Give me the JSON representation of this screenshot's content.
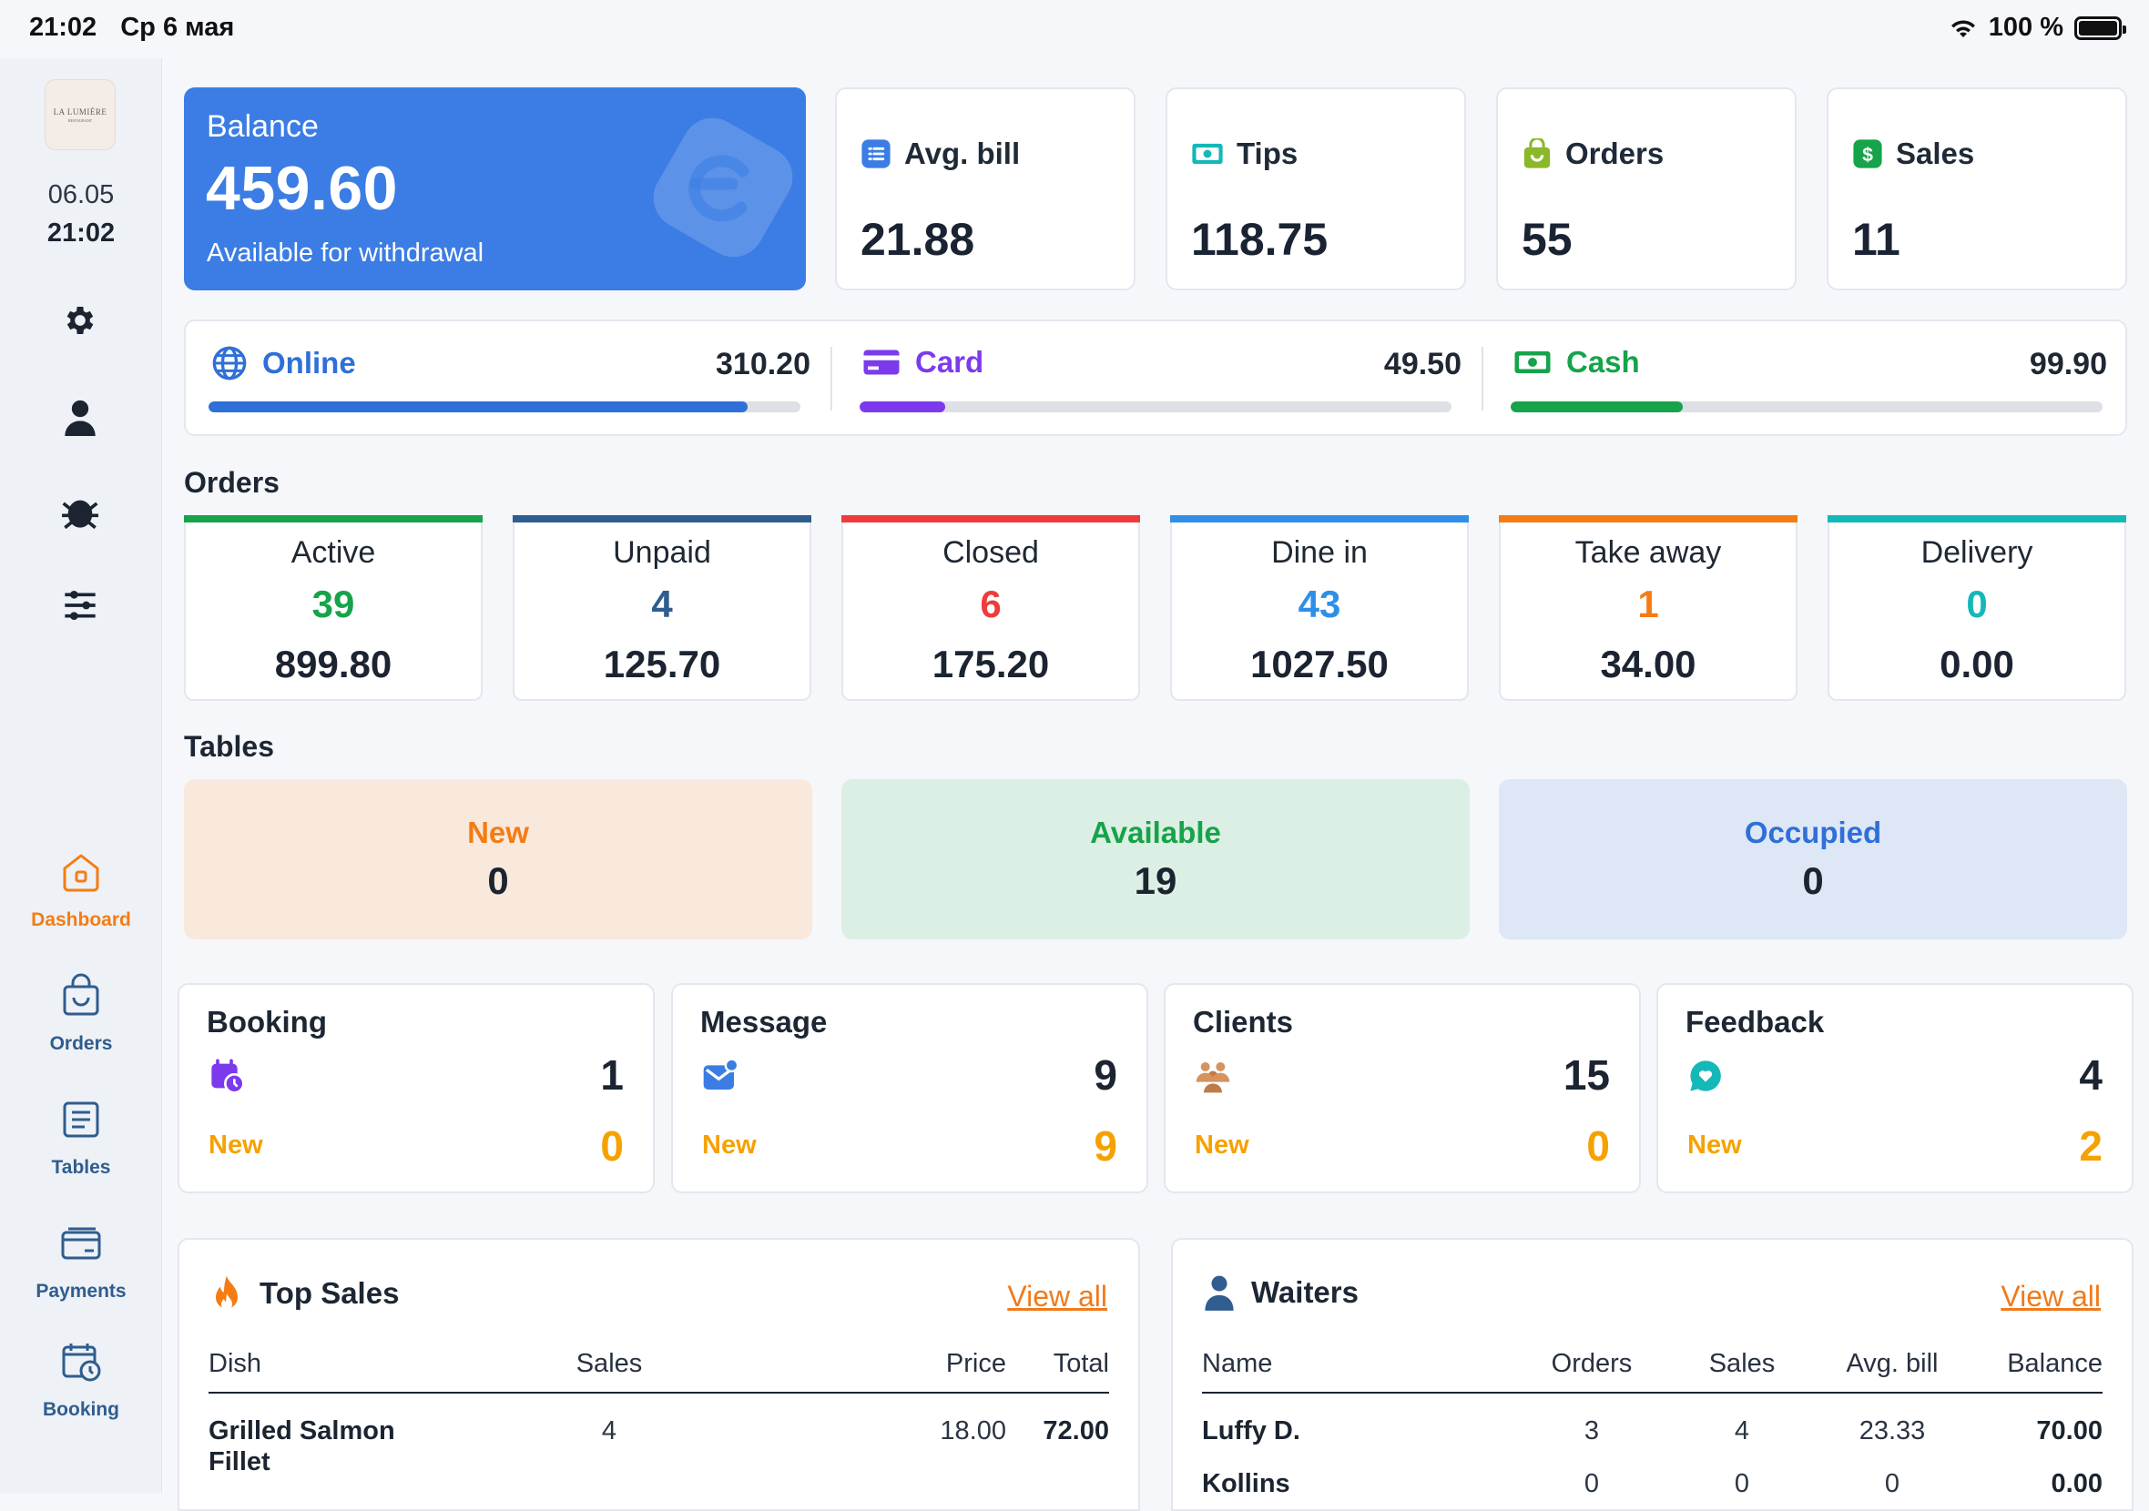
{
  "status_bar": {
    "time": "21:02",
    "date": "Ср 6 мая",
    "battery": "100 %"
  },
  "sidebar": {
    "logo_text": "LA LUMIÈRE",
    "logo_subtext": "RESTAURANT",
    "date": "06.05",
    "time": "21:02",
    "tool_icons": [
      "gear-icon",
      "user-icon",
      "bug-icon",
      "sliders-icon"
    ],
    "nav": [
      {
        "label": "Dashboard",
        "icon": "home-icon",
        "active": true
      },
      {
        "label": "Orders",
        "icon": "bag-icon",
        "active": false
      },
      {
        "label": "Tables",
        "icon": "list-icon",
        "active": false
      },
      {
        "label": "Payments",
        "icon": "card-icon",
        "active": false
      },
      {
        "label": "Booking",
        "icon": "calendar-clock-icon",
        "active": false
      }
    ]
  },
  "balance": {
    "label": "Balance",
    "amount": "459.60",
    "subtitle": "Available for withdrawal"
  },
  "stats": [
    {
      "label": "Avg. bill",
      "value": "21.88",
      "icon": "list-icon",
      "color": "#3b7de4"
    },
    {
      "label": "Tips",
      "value": "118.75",
      "icon": "money-icon",
      "color": "#14b8b8"
    },
    {
      "label": "Orders",
      "value": "55",
      "icon": "bag-icon",
      "color": "#8bb82a"
    },
    {
      "label": "Sales",
      "value": "11",
      "icon": "dollar-icon",
      "color": "#16a34a"
    }
  ],
  "payments": [
    {
      "label": "Online",
      "value": "310.20",
      "share": 0.91,
      "color": "#2f6fd8",
      "icon": "globe-icon"
    },
    {
      "label": "Card",
      "value": "49.50",
      "share": 0.145,
      "color": "#7c3aed",
      "icon": "credit-card-icon"
    },
    {
      "label": "Cash",
      "value": "99.90",
      "share": 0.29,
      "color": "#16a34a",
      "icon": "cash-icon"
    }
  ],
  "orders_section": {
    "title": "Orders",
    "cards": [
      {
        "label": "Active",
        "count": "39",
        "amount": "899.80",
        "color": "#16a34a"
      },
      {
        "label": "Unpaid",
        "count": "4",
        "amount": "125.70",
        "color": "#2f5d8f"
      },
      {
        "label": "Closed",
        "count": "6",
        "amount": "175.20",
        "color": "#ef3b3b"
      },
      {
        "label": "Dine in",
        "count": "43",
        "amount": "1027.50",
        "color": "#2f8fe8"
      },
      {
        "label": "Take away",
        "count": "1",
        "amount": "34.00",
        "color": "#f57c14"
      },
      {
        "label": "Delivery",
        "count": "0",
        "amount": "0.00",
        "color": "#14b8b8"
      }
    ]
  },
  "tables_section": {
    "title": "Tables",
    "cards": [
      {
        "label": "New",
        "count": "0",
        "color": "#f57c14",
        "bg": "#f9e9dc"
      },
      {
        "label": "Available",
        "count": "19",
        "color": "#16a34a",
        "bg": "#dcefe4"
      },
      {
        "label": "Occupied",
        "count": "0",
        "color": "#2f6fd8",
        "bg": "#dde7f5"
      }
    ]
  },
  "info_cards": [
    {
      "title": "Booking",
      "count": "1",
      "new_label": "New",
      "new_count": "0",
      "icon": "calendar-clock-icon"
    },
    {
      "title": "Message",
      "count": "9",
      "new_label": "New",
      "new_count": "9",
      "icon": "mail-icon"
    },
    {
      "title": "Clients",
      "count": "15",
      "new_label": "New",
      "new_count": "0",
      "icon": "people-icon"
    },
    {
      "title": "Feedback",
      "count": "4",
      "new_label": "New",
      "new_count": "2",
      "icon": "heart-chat-icon"
    }
  ],
  "top_sales": {
    "title": "Top Sales",
    "view_all": "View all",
    "columns": [
      "Dish",
      "Sales",
      "Price",
      "Total"
    ],
    "rows": [
      {
        "dish_line1": "Grilled Salmon",
        "dish_line2": "Fillet",
        "sales": "4",
        "price": "18.00",
        "total": "72.00"
      }
    ]
  },
  "waiters": {
    "title": "Waiters",
    "view_all": "View all",
    "columns": [
      "Name",
      "Orders",
      "Sales",
      "Avg. bill",
      "Balance"
    ],
    "rows": [
      {
        "name": "Luffy D.",
        "orders": "3",
        "sales": "4",
        "avg": "23.33",
        "balance": "70.00"
      },
      {
        "name": "Kollins",
        "orders": "0",
        "sales": "0",
        "avg": "0",
        "balance": "0.00"
      }
    ]
  }
}
